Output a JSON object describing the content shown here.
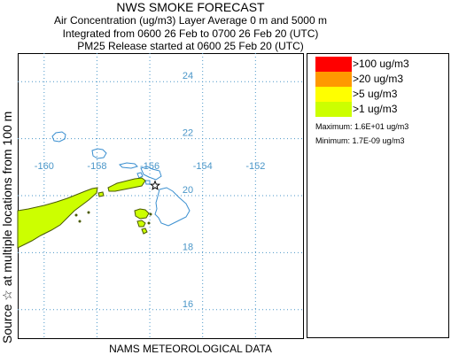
{
  "header": {
    "title": "NWS SMOKE FORECAST",
    "line2": "Air Concentration (ug/m3) Layer Average    0 m and  5000 m",
    "line3": "Integrated from 0600 26 Feb to 0700 26 Feb 20 (UTC)",
    "line4": "PM25 Release started at 0600 25 Feb 20 (UTC)"
  },
  "side_label": "Source ☆  at multiple locations  from  100 m",
  "footer": "NAMS METEOROLOGICAL DATA",
  "legend": {
    "items": [
      {
        "label": ">100 ug/m3",
        "color": "#ff0000"
      },
      {
        "label": ">20 ug/m3",
        "color": "#ff9900"
      },
      {
        "label": ">5 ug/m3",
        "color": "#ffff00"
      },
      {
        "label": ">1 ug/m3",
        "color": "#ccff00"
      }
    ],
    "maximum": "Maximum: 1.6E+01 ug/m3",
    "minimum": "Minimum: 1.7E-09 ug/m3"
  },
  "colors": {
    "gridline": "#4a96c8",
    "coastline": "#3a8fd0",
    "plume_fill": "#ccff00",
    "plume_stroke": "#4a5a00"
  },
  "chart_data": {
    "type": "map",
    "x_axis": {
      "label": "",
      "ticks": [
        -160,
        -158,
        -156,
        -154,
        -152
      ],
      "range": [
        -161,
        -150.2
      ]
    },
    "y_axis": {
      "label": "",
      "ticks": [
        24,
        22,
        20,
        18,
        16
      ],
      "range": [
        15,
        25
      ]
    },
    "grid": "dotted",
    "legend_position": "right",
    "source_markers": [
      {
        "lon": -155.8,
        "lat": 20.35
      }
    ]
  }
}
